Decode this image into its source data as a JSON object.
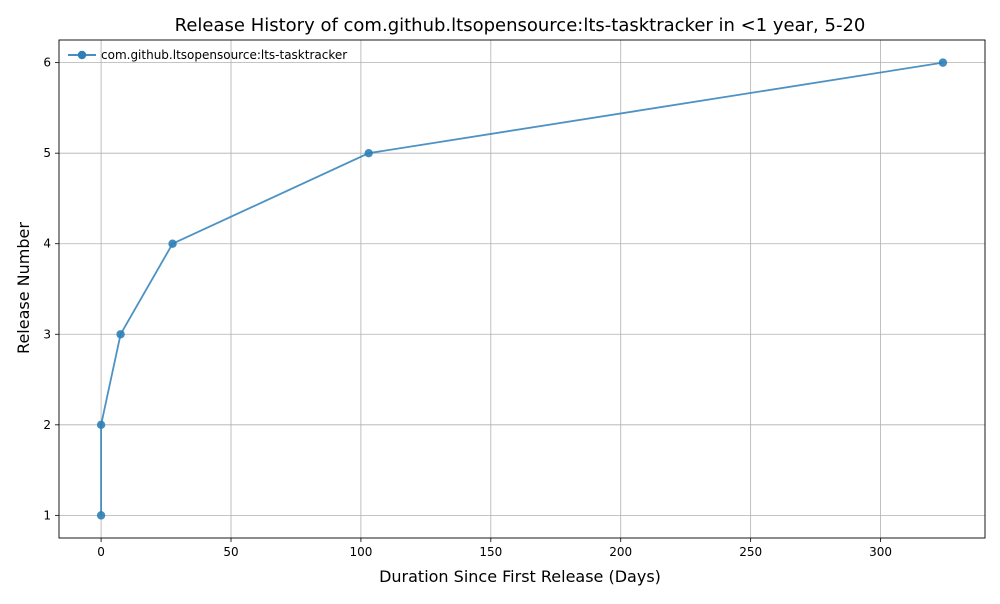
{
  "chart_data": {
    "type": "line",
    "title": "Release History of com.github.ltsopensource:lts-tasktracker in <1 year, 5-20",
    "xlabel": "Duration Since First Release (Days)",
    "ylabel": "Release Number",
    "xlim": [
      -16.2,
      340.2
    ],
    "ylim": [
      0.75,
      6.25
    ],
    "xticks": [
      0,
      50,
      100,
      150,
      200,
      250,
      300
    ],
    "yticks": [
      1,
      2,
      3,
      4,
      5,
      6
    ],
    "grid": true,
    "legend_position": "top-left",
    "series": [
      {
        "name": "com.github.ltsopensource:lts-tasktracker",
        "color": "#2e7fb8",
        "marker": "circle",
        "x": [
          0,
          0,
          7.5,
          27.5,
          103,
          324
        ],
        "y": [
          1,
          2,
          3,
          4,
          5,
          6
        ]
      }
    ]
  }
}
